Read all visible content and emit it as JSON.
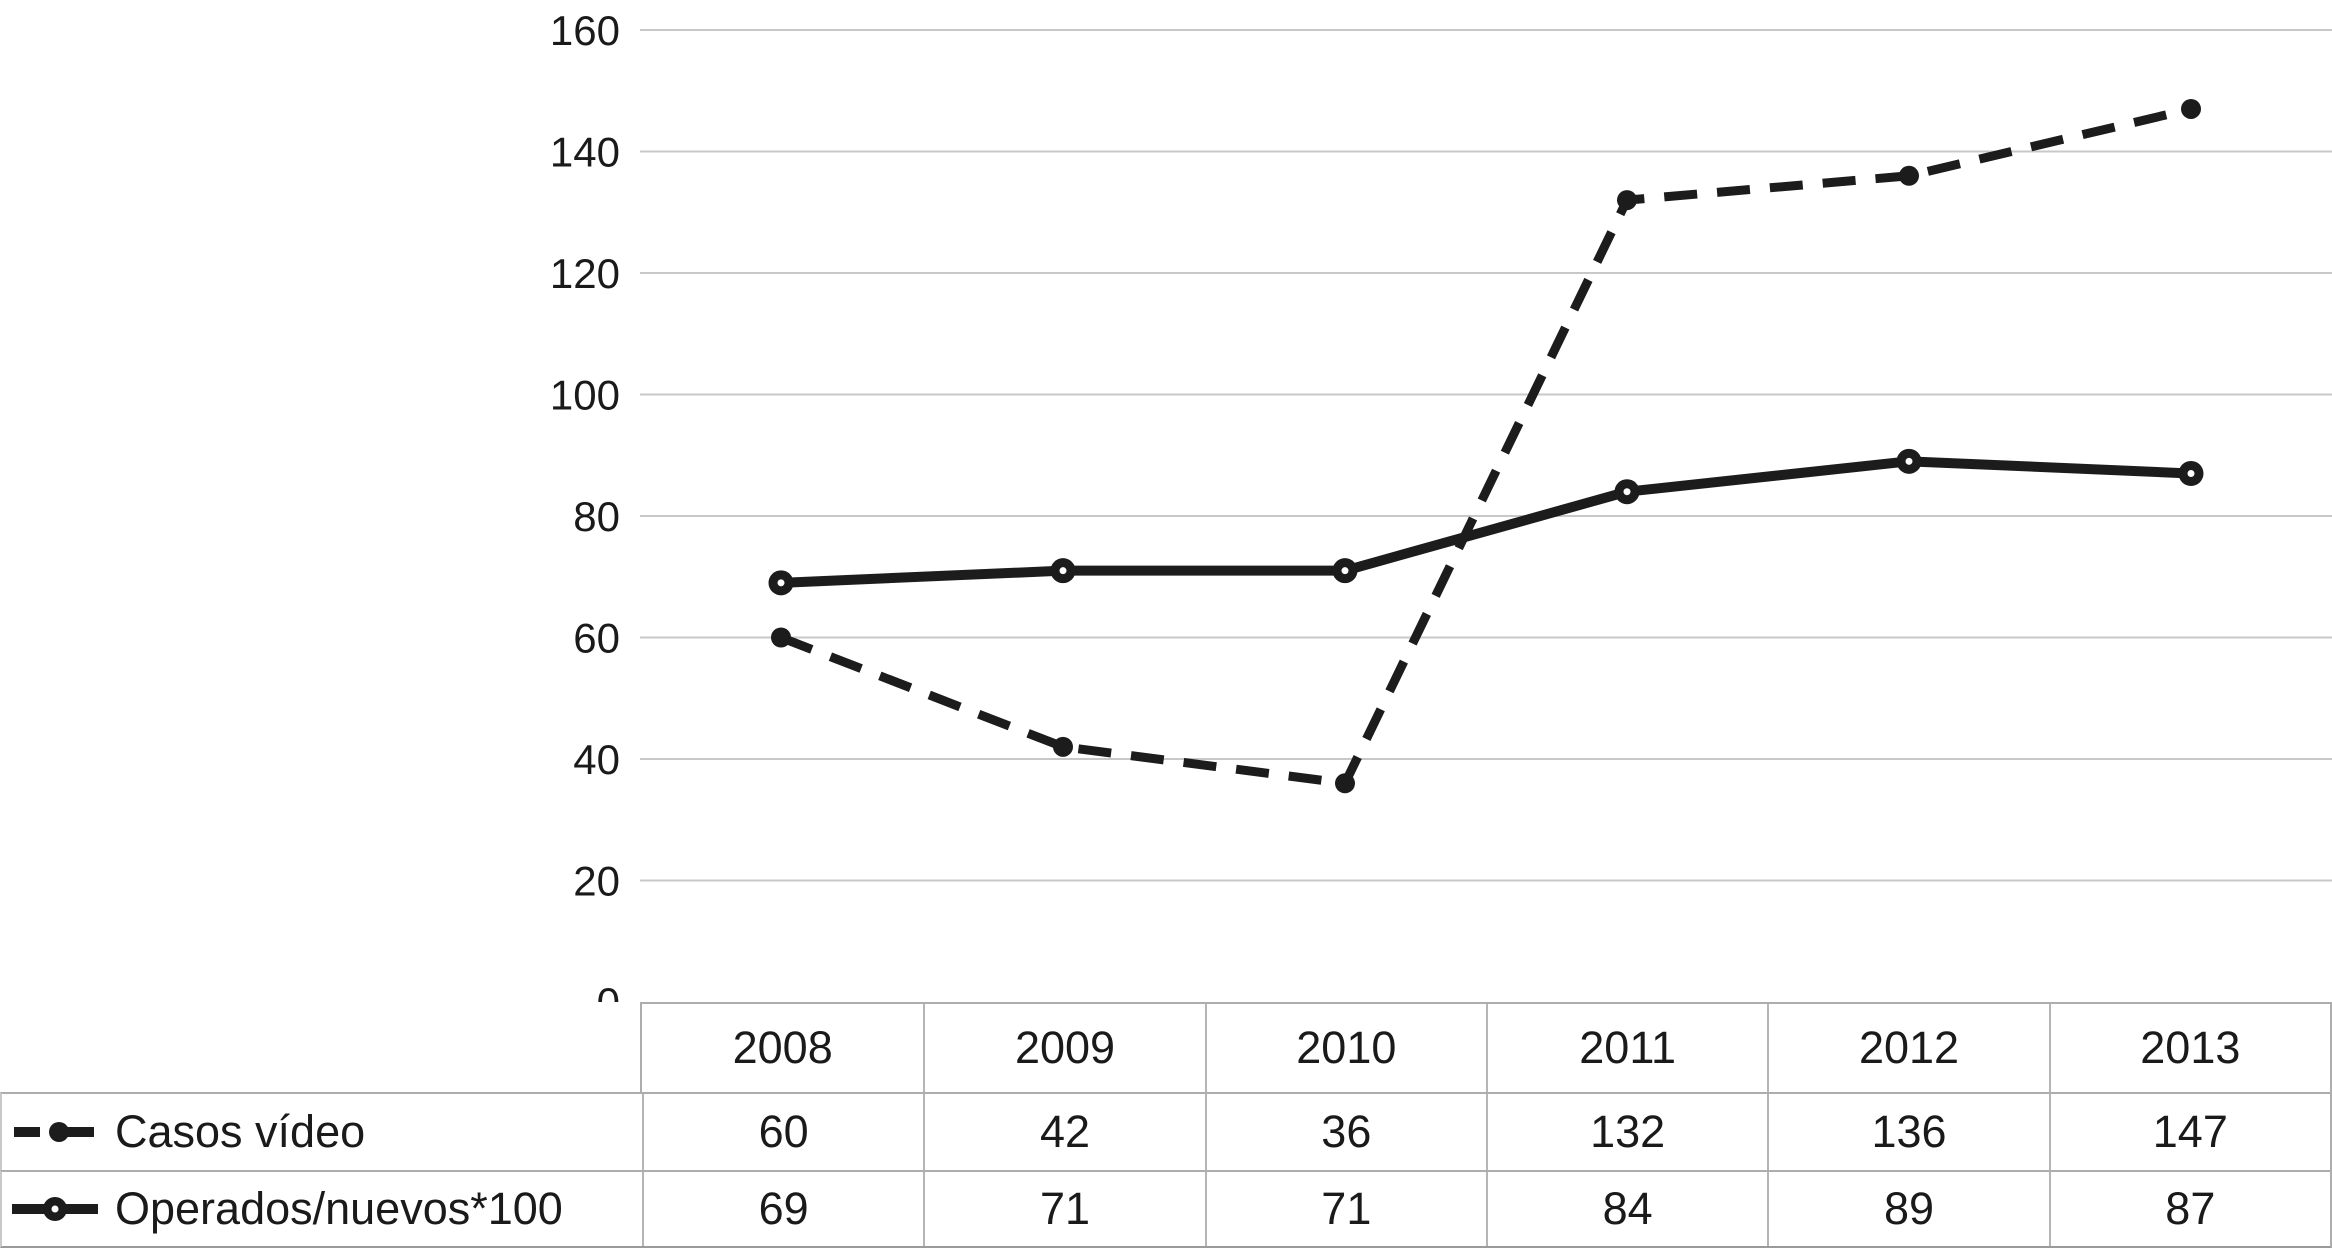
{
  "chart_data": {
    "type": "line",
    "categories": [
      "2008",
      "2009",
      "2010",
      "2011",
      "2012",
      "2013"
    ],
    "series": [
      {
        "name": "Casos vídeo",
        "line_style": "dashed",
        "marker": "dot",
        "values": [
          60,
          42,
          36,
          132,
          136,
          147
        ]
      },
      {
        "name": "Operados/nuevos*100",
        "line_style": "solid",
        "marker": "donut",
        "values": [
          69,
          71,
          71,
          84,
          89,
          87
        ]
      }
    ],
    "title": "",
    "xlabel": "",
    "ylabel": "",
    "ylim": [
      0,
      160
    ],
    "yticks": [
      0,
      20,
      40,
      60,
      80,
      100,
      120,
      140,
      160
    ],
    "grid": "horizontal-only",
    "legend_position": "left-of-table-rows",
    "data_table_shown": true
  },
  "colors": {
    "series_line": "#1c1c1c",
    "gridline": "#c8c8c8",
    "table_border": "#adadad",
    "text": "#1a1a1a",
    "background": "#ffffff",
    "marker_hole": "#ffffff"
  }
}
